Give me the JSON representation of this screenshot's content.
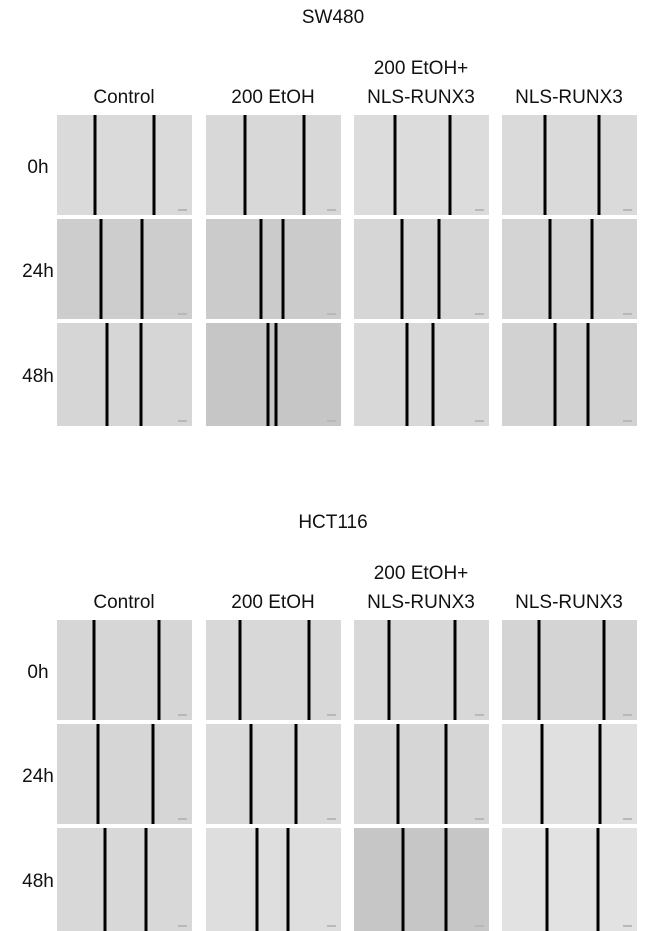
{
  "panels": [
    {
      "title": "SW480",
      "columns": [
        [
          "Control"
        ],
        [
          "200 EtOH"
        ],
        [
          "200 EtOH+",
          "NLS-RUNX3"
        ],
        [
          "NLS-RUNX3"
        ]
      ],
      "rows": [
        "0h",
        "24h",
        "48h"
      ]
    },
    {
      "title": "HCT116",
      "columns": [
        [
          "Control"
        ],
        [
          "200 EtOH"
        ],
        [
          "200 EtOH+",
          "NLS-RUNX3"
        ],
        [
          "NLS-RUNX3"
        ]
      ],
      "rows": [
        "0h",
        "24h",
        "48h"
      ]
    }
  ]
}
